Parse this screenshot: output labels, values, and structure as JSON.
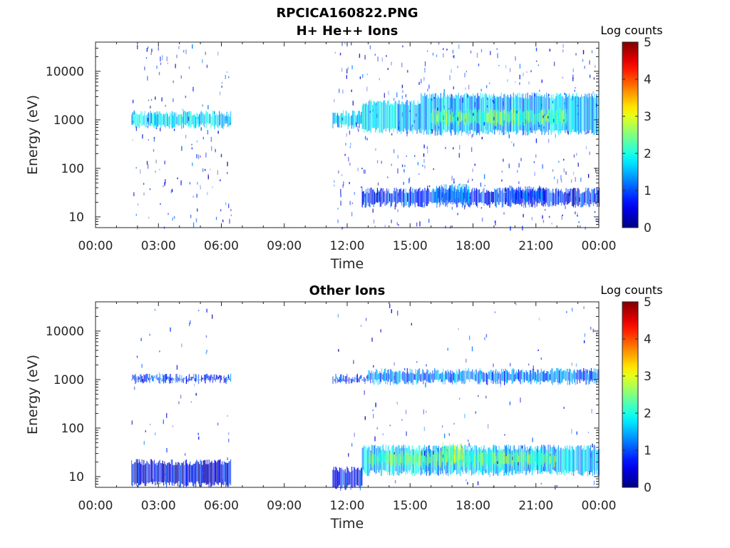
{
  "figure": {
    "file_title": "RPCICA160822.PNG"
  },
  "chart_data": [
    {
      "type": "heatmap",
      "title": "H+ He++ Ions",
      "xlabel": "Time",
      "ylabel": "Energy (eV)",
      "y_scale": "log",
      "ylim": [
        6,
        40000
      ],
      "xlim_hours": [
        0,
        24
      ],
      "x_ticks": [
        "00:00",
        "03:00",
        "06:00",
        "09:00",
        "12:00",
        "15:00",
        "18:00",
        "21:00",
        "00:00"
      ],
      "y_ticks": [
        "10",
        "100",
        "1000",
        "10000"
      ],
      "colorbar": {
        "label": "Log counts",
        "range": [
          0,
          5
        ],
        "ticks": [
          "0",
          "1",
          "2",
          "3",
          "4",
          "5"
        ],
        "colormap": "jet"
      },
      "data_intervals_hours": [
        [
          1.7,
          6.45
        ],
        [
          11.3,
          24.0
        ]
      ],
      "bands": [
        {
          "t0": 1.7,
          "t1": 6.45,
          "e_low": 750,
          "e_high": 1350,
          "log_counts": 1.7
        },
        {
          "t0": 11.3,
          "t1": 12.7,
          "e_low": 750,
          "e_high": 1400,
          "log_counts": 1.6
        },
        {
          "t0": 12.7,
          "t1": 15.5,
          "e_low": 600,
          "e_high": 2300,
          "log_counts": 1.6
        },
        {
          "t0": 15.5,
          "t1": 24.0,
          "e_low": 550,
          "e_high": 3200,
          "log_counts": 1.5
        },
        {
          "t0": 16.0,
          "t1": 22.5,
          "e_low": 850,
          "e_high": 1500,
          "log_counts": 2.4
        },
        {
          "t0": 12.7,
          "t1": 24.0,
          "e_low": 18,
          "e_high": 35,
          "log_counts": 0.8
        },
        {
          "t0": 16.2,
          "t1": 17.8,
          "e_low": 22,
          "e_high": 42,
          "log_counts": 1.3
        },
        {
          "t0": 19.8,
          "t1": 21.5,
          "e_low": 22,
          "e_high": 38,
          "log_counts": 1.0
        }
      ],
      "scatter_density": 0.25
    },
    {
      "type": "heatmap",
      "title": "Other Ions",
      "xlabel": "Time",
      "ylabel": "Energy (eV)",
      "y_scale": "log",
      "ylim": [
        6,
        40000
      ],
      "xlim_hours": [
        0,
        24
      ],
      "x_ticks": [
        "00:00",
        "03:00",
        "06:00",
        "09:00",
        "12:00",
        "15:00",
        "18:00",
        "21:00",
        "00:00"
      ],
      "y_ticks": [
        "10",
        "100",
        "1000",
        "10000"
      ],
      "colorbar": {
        "label": "Log counts",
        "range": [
          0,
          5
        ],
        "ticks": [
          "0",
          "1",
          "2",
          "3",
          "4",
          "5"
        ],
        "colormap": "jet"
      },
      "data_intervals_hours": [
        [
          1.7,
          6.45
        ],
        [
          11.3,
          24.0
        ]
      ],
      "bands": [
        {
          "t0": 1.7,
          "t1": 6.45,
          "e_low": 950,
          "e_high": 1150,
          "log_counts": 0.9
        },
        {
          "t0": 11.3,
          "t1": 13.0,
          "e_low": 950,
          "e_high": 1150,
          "log_counts": 0.9
        },
        {
          "t0": 13.0,
          "t1": 24.0,
          "e_low": 900,
          "e_high": 1500,
          "log_counts": 1.2
        },
        {
          "t0": 1.7,
          "t1": 6.45,
          "e_low": 7,
          "e_high": 20,
          "log_counts": 0.5
        },
        {
          "t0": 11.3,
          "t1": 12.7,
          "e_low": 6,
          "e_high": 14,
          "log_counts": 0.7
        },
        {
          "t0": 12.7,
          "t1": 24.0,
          "e_low": 12,
          "e_high": 40,
          "log_counts": 1.6
        },
        {
          "t0": 13.0,
          "t1": 22.0,
          "e_low": 18,
          "e_high": 30,
          "log_counts": 2.4
        },
        {
          "t0": 16.5,
          "t1": 17.5,
          "e_low": 22,
          "e_high": 45,
          "log_counts": 2.6
        }
      ],
      "scatter_density": 0.08
    }
  ]
}
